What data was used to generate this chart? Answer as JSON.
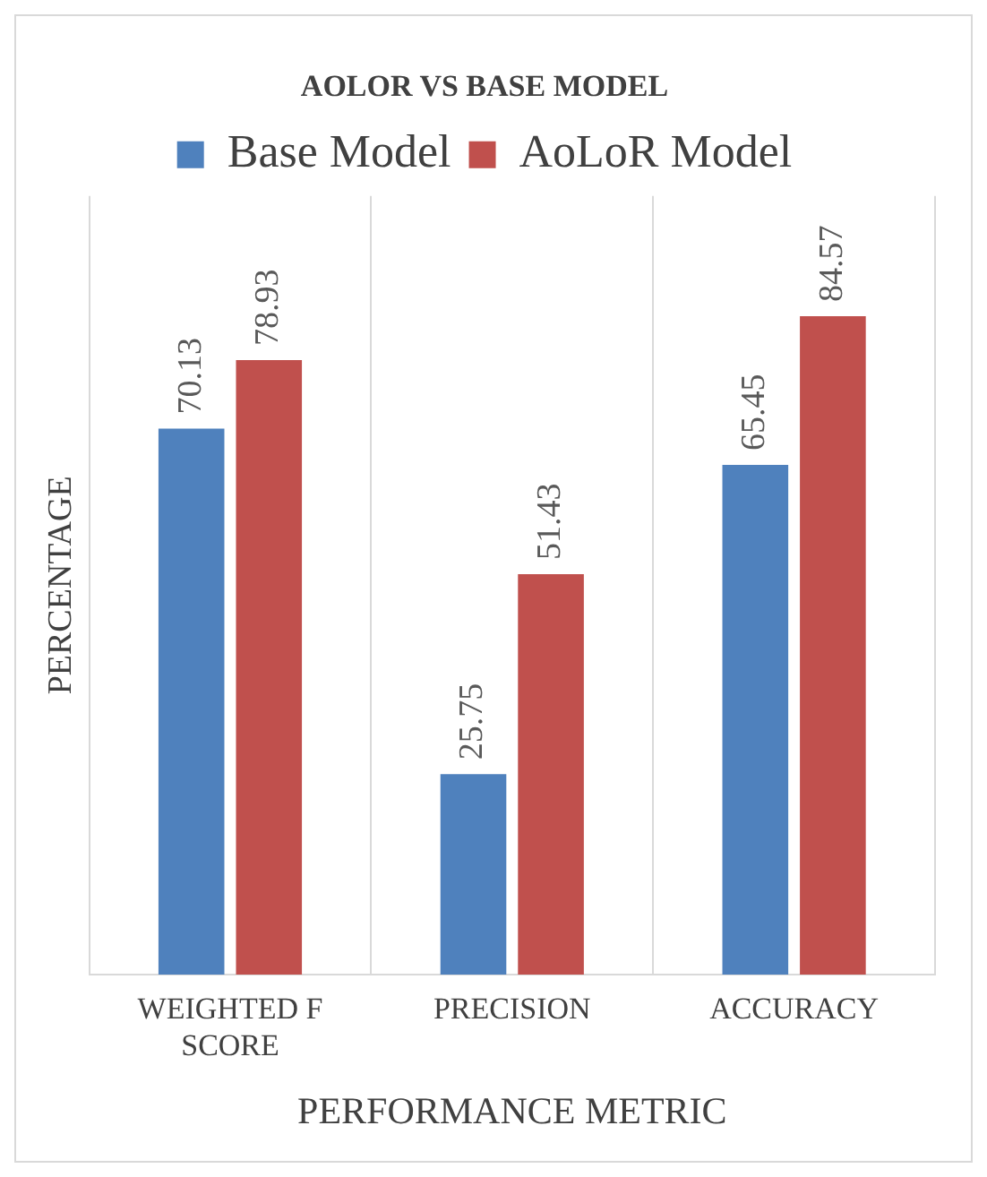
{
  "chart_data": {
    "type": "bar",
    "title": "AOLOR VS BASE MODEL",
    "xlabel": "PERFORMANCE METRIC",
    "ylabel": "PERCENTAGE",
    "categories": [
      "WEIGHTED F SCORE",
      "PRECISION",
      "ACCURACY"
    ],
    "series": [
      {
        "name": "Base Model",
        "color": "#4f81bd",
        "values": [
          70.13,
          25.75,
          65.45
        ]
      },
      {
        "name": "AoLoR Model",
        "color": "#c0504d",
        "values": [
          78.93,
          51.43,
          84.57
        ]
      }
    ],
    "ylim": [
      0,
      100
    ],
    "data_labels": true,
    "legend": "top",
    "grid": "x",
    "tick_labels": "x"
  }
}
